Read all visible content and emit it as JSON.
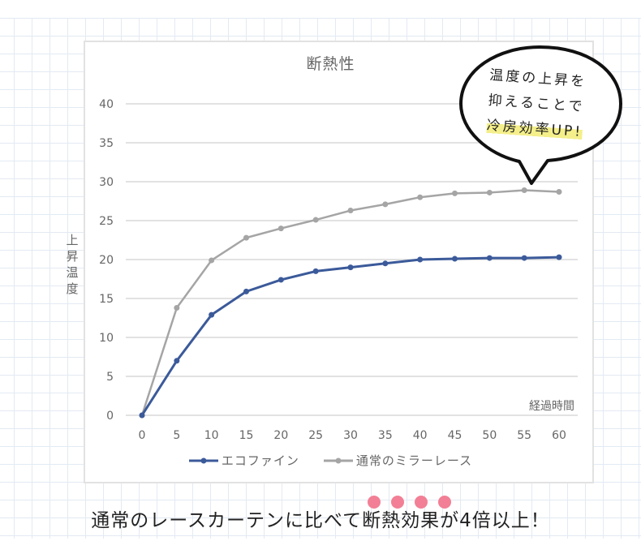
{
  "chart_data": {
    "type": "line",
    "title": "断熱性",
    "xlabel": "経過時間",
    "ylabel": "上昇温度",
    "x": [
      0,
      5,
      10,
      15,
      20,
      25,
      30,
      35,
      40,
      45,
      50,
      55,
      60
    ],
    "xticks": [
      "0",
      "5",
      "10",
      "15",
      "20",
      "25",
      "30",
      "35",
      "40",
      "45",
      "50",
      "55",
      "60"
    ],
    "yticks": [
      "0",
      "5",
      "10",
      "15",
      "20",
      "25",
      "30",
      "35",
      "40"
    ],
    "ylim": [
      0,
      40
    ],
    "xlim": [
      0,
      60
    ],
    "grid": "horizontal",
    "legend_position": "bottom",
    "series": [
      {
        "name": "エコファイン",
        "color": "#3b5a9a",
        "values": [
          0,
          7.0,
          12.9,
          15.9,
          17.4,
          18.5,
          19.0,
          19.5,
          20.0,
          20.1,
          20.2,
          20.2,
          20.3
        ]
      },
      {
        "name": "通常のミラーレース",
        "color": "#a5a5a5",
        "values": [
          0,
          13.8,
          19.9,
          22.8,
          24.0,
          25.1,
          26.3,
          27.1,
          28.0,
          28.5,
          28.6,
          28.9,
          28.7
        ]
      }
    ]
  },
  "callout": {
    "line1": "温度の上昇を",
    "line2": "抑えることで",
    "line3_highlight": "冷房効率UP!"
  },
  "caption": {
    "text": "通常のレースカーテンに比べて断熱効果が4倍以上！",
    "emphasis_dots": 4,
    "dot_color": "#f27f95"
  }
}
